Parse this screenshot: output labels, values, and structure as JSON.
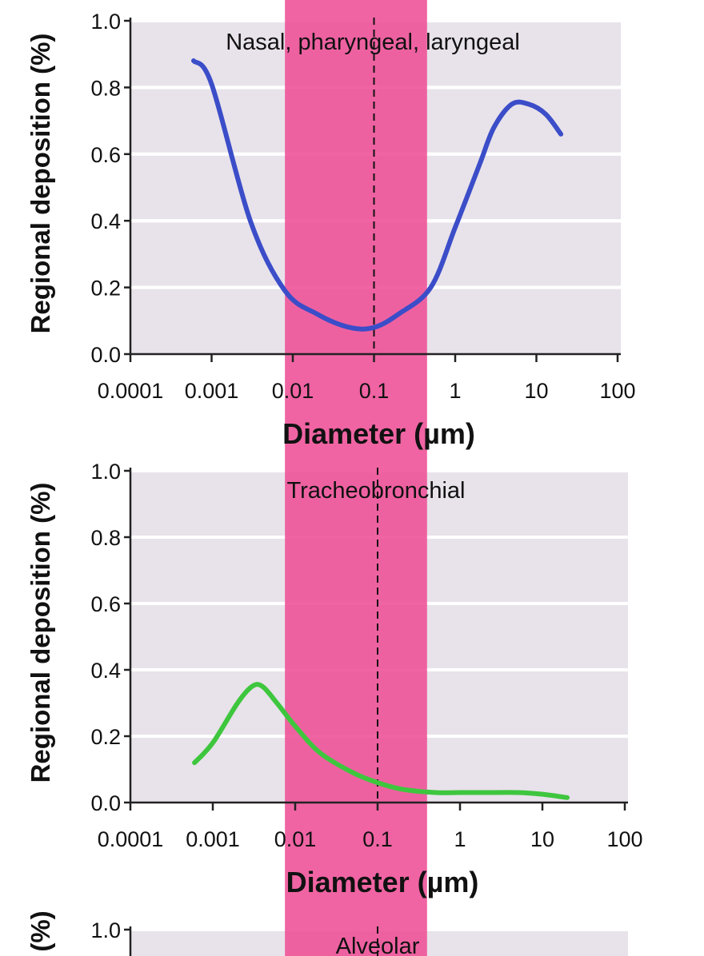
{
  "highlight_band": {
    "x_range": [
      0.008,
      0.45
    ],
    "color": "#ee4f96"
  },
  "reference_line_x": 0.1,
  "colors": {
    "panel_bg": "#e8e2ea",
    "grid": "#ffffff",
    "axis": "#222222"
  },
  "chart_data": [
    {
      "type": "line",
      "title": "Nasal, pharyngeal, laryngeal",
      "xlabel": "Diameter (µm)",
      "ylabel": "Regional deposition (%)",
      "xscale": "log",
      "xlim": [
        0.0001,
        100
      ],
      "ylim": [
        0,
        1.0
      ],
      "xticks": [
        "0.0001",
        "0.001",
        "0.01",
        "0.1",
        "1",
        "10",
        "100"
      ],
      "yticks": [
        "0.0",
        "0.2",
        "0.4",
        "0.6",
        "0.8",
        "1.0"
      ],
      "grid": true,
      "series": [
        {
          "color": "#3b4dc8",
          "x": [
            0.0006,
            0.001,
            0.003,
            0.008,
            0.02,
            0.05,
            0.1,
            0.2,
            0.5,
            1,
            2,
            3,
            5,
            8,
            13,
            20
          ],
          "y": [
            0.88,
            0.81,
            0.4,
            0.19,
            0.12,
            0.08,
            0.08,
            0.12,
            0.2,
            0.38,
            0.57,
            0.68,
            0.75,
            0.75,
            0.72,
            0.66
          ]
        }
      ]
    },
    {
      "type": "line",
      "title": "Tracheobronchial",
      "xlabel": "Diameter (µm)",
      "ylabel": "Regional deposition (%)",
      "xscale": "log",
      "xlim": [
        0.0001,
        100
      ],
      "ylim": [
        0,
        1.0
      ],
      "xticks": [
        "0.0001",
        "0.001",
        "0.01",
        "0.1",
        "1",
        "10",
        "100"
      ],
      "yticks": [
        "0.0",
        "0.2",
        "0.4",
        "0.6",
        "0.8",
        "1.0"
      ],
      "grid": true,
      "series": [
        {
          "color": "#3ec63e",
          "x": [
            0.0006,
            0.001,
            0.002,
            0.003,
            0.004,
            0.006,
            0.01,
            0.02,
            0.05,
            0.1,
            0.2,
            0.5,
            1,
            2,
            5,
            10,
            20
          ],
          "y": [
            0.12,
            0.18,
            0.3,
            0.35,
            0.35,
            0.3,
            0.23,
            0.15,
            0.09,
            0.06,
            0.04,
            0.03,
            0.03,
            0.03,
            0.03,
            0.025,
            0.015
          ]
        }
      ]
    },
    {
      "type": "line",
      "title": "Alveolar",
      "ylabel": "(%)",
      "xscale": "log",
      "xlim": [
        0.0001,
        100
      ],
      "ylim": [
        0,
        1.0
      ],
      "yticks": [
        "1.0"
      ],
      "grid": true
    }
  ]
}
